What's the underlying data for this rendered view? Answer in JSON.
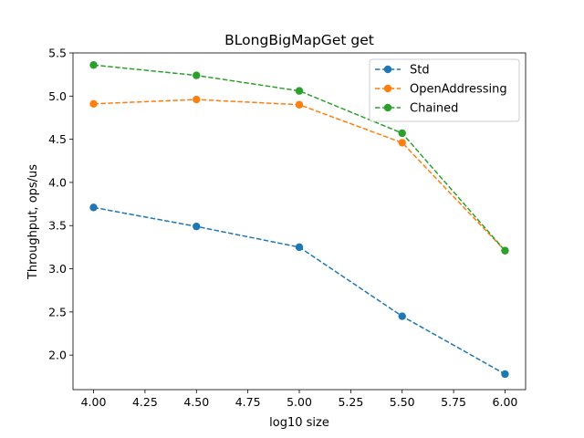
{
  "chart_data": {
    "type": "line",
    "title": "BLongBigMapGet get",
    "xlabel": "log10 size",
    "ylabel": "Throughput, ops/us",
    "x": [
      4.0,
      4.5,
      5.0,
      5.5,
      6.0
    ],
    "xlim": [
      3.9,
      6.1
    ],
    "ylim": [
      1.6,
      5.5
    ],
    "xticks": [
      "4.00",
      "4.25",
      "4.50",
      "4.75",
      "5.00",
      "5.25",
      "5.50",
      "5.75",
      "6.00"
    ],
    "yticks": [
      "2.0",
      "2.5",
      "3.0",
      "3.5",
      "4.0",
      "4.5",
      "5.0",
      "5.5"
    ],
    "grid": false,
    "legend_position": "top-right",
    "line_style": "dashed",
    "marker": "circle",
    "series": [
      {
        "name": "Std",
        "color": "#1f77b4",
        "values": [
          3.71,
          3.49,
          3.25,
          2.45,
          1.78
        ]
      },
      {
        "name": "OpenAddressing",
        "color": "#ff7f0e",
        "values": [
          4.91,
          4.96,
          4.9,
          4.46,
          3.21
        ]
      },
      {
        "name": "Chained",
        "color": "#2ca02c",
        "values": [
          5.36,
          5.24,
          5.06,
          4.57,
          3.21
        ]
      }
    ]
  }
}
